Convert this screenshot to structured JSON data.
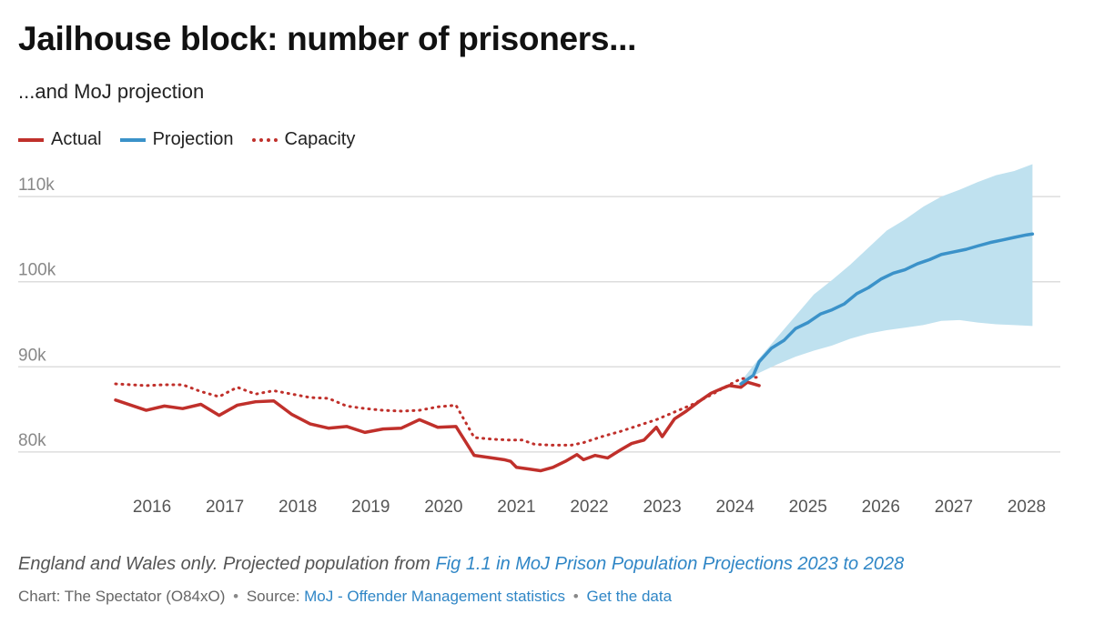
{
  "title": "Jailhouse block: number of prisoners...",
  "subtitle": "...and MoJ projection",
  "colors": {
    "actual": "#c0302b",
    "projection": "#3b92c9",
    "band": "#bfe1ef",
    "capacity": "#c0302b",
    "grid": "#dddddd",
    "axis_text": "#888888"
  },
  "legend": [
    {
      "label": "Actual",
      "style": "solid",
      "color": "#c0302b"
    },
    {
      "label": "Projection",
      "style": "solid",
      "color": "#3b92c9"
    },
    {
      "label": "Capacity",
      "style": "dotted",
      "color": "#c0302b"
    }
  ],
  "chart_data": {
    "type": "line",
    "title": "Jailhouse block: number of prisoners...",
    "subtitle": "...and MoJ projection",
    "xlim": [
      2015.5,
      2028.25
    ],
    "ylim": [
      77000,
      113000
    ],
    "yticks": [
      80000,
      90000,
      100000,
      110000
    ],
    "ytick_labels": [
      "80k",
      "90k",
      "100k",
      "110k"
    ],
    "xticks": [
      2016,
      2017,
      2018,
      2019,
      2020,
      2021,
      2022,
      2023,
      2024,
      2025,
      2026,
      2027,
      2028
    ],
    "xtick_labels": [
      "2016",
      "2017",
      "2018",
      "2019",
      "2020",
      "2021",
      "2022",
      "2023",
      "2024",
      "2025",
      "2026",
      "2027",
      "2028"
    ],
    "grid": true,
    "legend_position": "top-left",
    "series": [
      {
        "name": "Actual",
        "points": [
          [
            2015.5,
            86100
          ],
          [
            2015.92,
            84900
          ],
          [
            2016.17,
            85400
          ],
          [
            2016.42,
            85100
          ],
          [
            2016.67,
            85600
          ],
          [
            2016.92,
            84300
          ],
          [
            2017.17,
            85500
          ],
          [
            2017.42,
            85900
          ],
          [
            2017.67,
            86000
          ],
          [
            2017.92,
            84400
          ],
          [
            2018.17,
            83300
          ],
          [
            2018.42,
            82800
          ],
          [
            2018.67,
            83000
          ],
          [
            2018.92,
            82300
          ],
          [
            2019.17,
            82700
          ],
          [
            2019.42,
            82800
          ],
          [
            2019.67,
            83800
          ],
          [
            2019.92,
            82900
          ],
          [
            2020.17,
            83000
          ],
          [
            2020.42,
            79600
          ],
          [
            2020.67,
            79300
          ],
          [
            2020.83,
            79100
          ],
          [
            2020.92,
            78900
          ],
          [
            2021.0,
            78200
          ],
          [
            2021.17,
            78000
          ],
          [
            2021.33,
            77800
          ],
          [
            2021.5,
            78200
          ],
          [
            2021.67,
            78900
          ],
          [
            2021.83,
            79700
          ],
          [
            2021.92,
            79100
          ],
          [
            2022.08,
            79600
          ],
          [
            2022.25,
            79300
          ],
          [
            2022.42,
            80200
          ],
          [
            2022.58,
            81000
          ],
          [
            2022.75,
            81400
          ],
          [
            2022.92,
            82900
          ],
          [
            2023.0,
            81800
          ],
          [
            2023.17,
            83900
          ],
          [
            2023.33,
            84800
          ],
          [
            2023.5,
            85900
          ],
          [
            2023.67,
            86900
          ],
          [
            2023.83,
            87500
          ],
          [
            2023.92,
            87800
          ],
          [
            2024.08,
            87600
          ],
          [
            2024.17,
            88200
          ],
          [
            2024.33,
            87800
          ]
        ]
      },
      {
        "name": "Projection",
        "points": [
          [
            2024.08,
            88000
          ],
          [
            2024.25,
            89000
          ],
          [
            2024.33,
            90600
          ],
          [
            2024.5,
            92200
          ],
          [
            2024.67,
            93100
          ],
          [
            2024.83,
            94500
          ],
          [
            2025.0,
            95200
          ],
          [
            2025.17,
            96200
          ],
          [
            2025.33,
            96700
          ],
          [
            2025.5,
            97400
          ],
          [
            2025.67,
            98600
          ],
          [
            2025.83,
            99300
          ],
          [
            2026.0,
            100300
          ],
          [
            2026.17,
            101000
          ],
          [
            2026.33,
            101400
          ],
          [
            2026.5,
            102100
          ],
          [
            2026.67,
            102600
          ],
          [
            2026.83,
            103200
          ],
          [
            2027.0,
            103500
          ],
          [
            2027.17,
            103800
          ],
          [
            2027.33,
            104200
          ],
          [
            2027.5,
            104600
          ],
          [
            2027.67,
            104900
          ],
          [
            2027.83,
            105200
          ],
          [
            2028.0,
            105500
          ],
          [
            2028.08,
            105600
          ]
        ]
      },
      {
        "name": "Capacity",
        "points": [
          [
            2015.5,
            88000
          ],
          [
            2015.92,
            87800
          ],
          [
            2016.17,
            87900
          ],
          [
            2016.42,
            87900
          ],
          [
            2016.67,
            87100
          ],
          [
            2016.92,
            86500
          ],
          [
            2017.17,
            87600
          ],
          [
            2017.42,
            86800
          ],
          [
            2017.67,
            87200
          ],
          [
            2017.92,
            86800
          ],
          [
            2018.17,
            86400
          ],
          [
            2018.42,
            86300
          ],
          [
            2018.67,
            85400
          ],
          [
            2018.92,
            85100
          ],
          [
            2019.17,
            84900
          ],
          [
            2019.42,
            84800
          ],
          [
            2019.67,
            84900
          ],
          [
            2019.92,
            85300
          ],
          [
            2020.17,
            85500
          ],
          [
            2020.42,
            81700
          ],
          [
            2020.67,
            81500
          ],
          [
            2020.92,
            81400
          ],
          [
            2021.08,
            81400
          ],
          [
            2021.25,
            80900
          ],
          [
            2021.5,
            80800
          ],
          [
            2021.75,
            80800
          ],
          [
            2021.92,
            81100
          ],
          [
            2022.17,
            81800
          ],
          [
            2022.42,
            82400
          ],
          [
            2022.67,
            83100
          ],
          [
            2022.92,
            83800
          ],
          [
            2023.17,
            84700
          ],
          [
            2023.42,
            85600
          ],
          [
            2023.67,
            86700
          ],
          [
            2023.92,
            87900
          ],
          [
            2024.08,
            88600
          ],
          [
            2024.33,
            88800
          ]
        ]
      }
    ],
    "projection_band": {
      "upper": [
        [
          2024.08,
          88300
        ],
        [
          2024.33,
          91000
        ],
        [
          2024.58,
          93500
        ],
        [
          2024.83,
          96000
        ],
        [
          2025.08,
          98500
        ],
        [
          2025.33,
          100200
        ],
        [
          2025.58,
          102000
        ],
        [
          2025.83,
          104000
        ],
        [
          2026.08,
          106000
        ],
        [
          2026.33,
          107300
        ],
        [
          2026.58,
          108800
        ],
        [
          2026.83,
          110000
        ],
        [
          2027.08,
          110800
        ],
        [
          2027.33,
          111700
        ],
        [
          2027.58,
          112500
        ],
        [
          2027.83,
          113000
        ],
        [
          2028.08,
          113800
        ]
      ],
      "lower": [
        [
          2024.08,
          88100
        ],
        [
          2024.33,
          89300
        ],
        [
          2024.58,
          90300
        ],
        [
          2024.83,
          91200
        ],
        [
          2025.08,
          91900
        ],
        [
          2025.33,
          92500
        ],
        [
          2025.58,
          93300
        ],
        [
          2025.83,
          93900
        ],
        [
          2026.08,
          94300
        ],
        [
          2026.33,
          94600
        ],
        [
          2026.58,
          94900
        ],
        [
          2026.83,
          95400
        ],
        [
          2027.08,
          95500
        ],
        [
          2027.33,
          95200
        ],
        [
          2027.58,
          95000
        ],
        [
          2027.83,
          94900
        ],
        [
          2028.08,
          94800
        ]
      ]
    }
  },
  "notes": {
    "prefix": "England and Wales only. Projected population from ",
    "link": "Fig 1.1 in MoJ Prison Population Projections 2023 to 2028"
  },
  "credits": {
    "chart": "Chart: The Spectator (O84xO)",
    "sep1": "•",
    "source_prefix": "Source: ",
    "source_link": "MoJ - Offender Management statistics",
    "sep2": "•",
    "data_link": "Get the data"
  }
}
